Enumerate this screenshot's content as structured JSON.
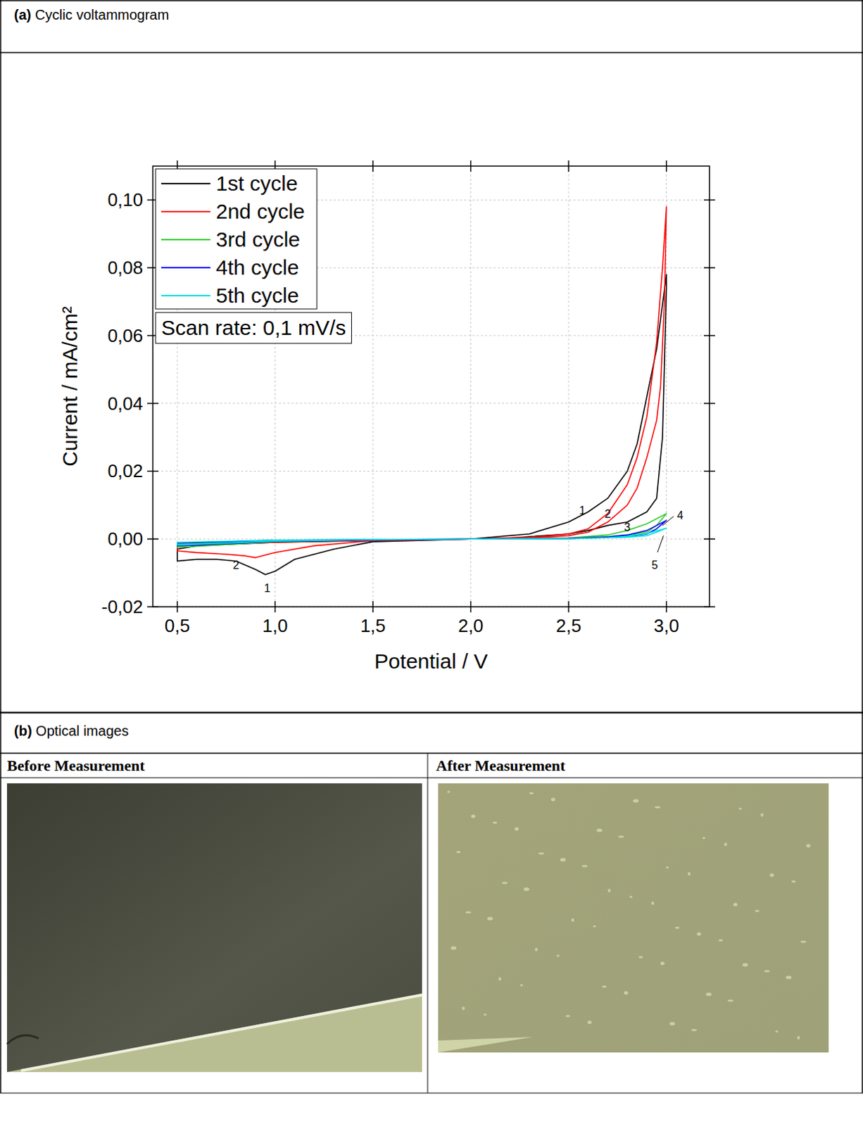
{
  "chart_data": {
    "type": "line",
    "x_label": "Potential / V",
    "y_label": "Current / mA/cm²",
    "xlim": [
      0.375,
      3.22
    ],
    "ylim": [
      -0.02,
      0.11
    ],
    "xticks": [
      {
        "value": 0.5,
        "label": "0,5"
      },
      {
        "value": 1.0,
        "label": "1,0"
      },
      {
        "value": 1.5,
        "label": "1,5"
      },
      {
        "value": 2.0,
        "label": "2,0"
      },
      {
        "value": 2.5,
        "label": "2,5"
      },
      {
        "value": 3.0,
        "label": "3,0"
      }
    ],
    "yticks": [
      {
        "value": -0.02,
        "label": "-0,02"
      },
      {
        "value": 0,
        "label": "0,00"
      },
      {
        "value": 0.02,
        "label": "0,02"
      },
      {
        "value": 0.04,
        "label": "0,04"
      },
      {
        "value": 0.06,
        "label": "0,06"
      },
      {
        "value": 0.08,
        "label": "0,08"
      },
      {
        "value": 0.1,
        "label": "0,10"
      }
    ],
    "grid": true,
    "legend": "upper left",
    "series": [
      {
        "name": "1st cycle",
        "color": "#000000",
        "x": [
          2.0,
          1.5,
          1.3,
          1.1,
          1.0,
          0.95,
          0.9,
          0.8,
          0.7,
          0.6,
          0.5,
          0.5,
          0.6,
          0.8,
          1.0,
          1.5,
          2.0,
          2.3,
          2.5,
          2.6,
          2.7,
          2.8,
          2.85,
          2.9,
          2.95,
          3.0,
          3.0,
          2.98,
          2.95,
          2.9,
          2.8,
          2.7,
          2.6,
          2.5,
          2.2,
          2.0
        ],
        "values": [
          0,
          -0.0008,
          -0.003,
          -0.006,
          -0.0095,
          -0.0105,
          -0.009,
          -0.0065,
          -0.006,
          -0.006,
          -0.0065,
          -0.003,
          -0.002,
          -0.0015,
          -0.001,
          -0.0005,
          0,
          0.0015,
          0.005,
          0.008,
          0.012,
          0.02,
          0.028,
          0.042,
          0.056,
          0.078,
          0.074,
          0.03,
          0.012,
          0.008,
          0.005,
          0.004,
          0.0025,
          0.0015,
          0.0003,
          0
        ]
      },
      {
        "name": "2nd cycle",
        "color": "#ff0000",
        "x": [
          2.0,
          1.5,
          1.2,
          1.0,
          0.9,
          0.85,
          0.75,
          0.6,
          0.5,
          0.5,
          0.6,
          1.0,
          1.5,
          2.0,
          2.3,
          2.5,
          2.6,
          2.7,
          2.8,
          2.85,
          2.9,
          2.95,
          2.98,
          3.0,
          2.99,
          2.97,
          2.95,
          2.9,
          2.85,
          2.8,
          2.7,
          2.6,
          2.5,
          2.3,
          2.0
        ],
        "values": [
          0,
          -0.0005,
          -0.002,
          -0.004,
          -0.0055,
          -0.005,
          -0.0045,
          -0.004,
          -0.0035,
          -0.002,
          -0.0018,
          -0.001,
          -0.0004,
          0,
          0.0005,
          0.0015,
          0.003,
          0.0075,
          0.016,
          0.024,
          0.036,
          0.058,
          0.08,
          0.098,
          0.07,
          0.045,
          0.035,
          0.024,
          0.015,
          0.01,
          0.005,
          0.002,
          0.001,
          0.0003,
          0
        ]
      },
      {
        "name": "3rd cycle",
        "color": "#33cc33",
        "x": [
          2.0,
          1.5,
          1.0,
          0.5,
          0.5,
          1.0,
          2.0,
          2.5,
          2.7,
          2.8,
          2.9,
          3.0,
          2.95,
          2.9,
          2.8,
          2.5,
          2.0
        ],
        "values": [
          0,
          -0.0003,
          -0.0008,
          -0.0025,
          -0.0015,
          -0.0005,
          0,
          0.0003,
          0.0012,
          0.0025,
          0.0045,
          0.0075,
          0.004,
          0.002,
          0.001,
          0.0002,
          0
        ]
      },
      {
        "name": "4th cycle",
        "color": "#0000ff",
        "x": [
          2.0,
          1.5,
          1.0,
          0.5,
          0.5,
          1.0,
          2.0,
          2.5,
          2.7,
          2.8,
          2.9,
          3.0,
          2.95,
          2.9,
          2.8,
          2.5,
          2.0
        ],
        "values": [
          0,
          -0.0003,
          -0.0007,
          -0.002,
          -0.0012,
          -0.0004,
          0,
          0.0002,
          0.0006,
          0.0012,
          0.0025,
          0.0055,
          0.003,
          0.0015,
          0.0007,
          0.0001,
          0
        ]
      },
      {
        "name": "5th cycle",
        "color": "#00e0e0",
        "x": [
          2.0,
          1.5,
          1.0,
          0.5,
          0.5,
          1.0,
          2.0,
          2.5,
          2.7,
          2.8,
          2.9,
          3.0,
          2.95,
          2.9,
          2.8,
          2.5,
          2.0
        ],
        "values": [
          0,
          -0.0002,
          -0.0006,
          -0.0018,
          -0.001,
          -0.0003,
          0,
          0.0001,
          0.0004,
          0.0008,
          0.0016,
          0.0032,
          0.002,
          0.001,
          0.0005,
          0.0001,
          0
        ]
      }
    ],
    "annotations": [
      {
        "text": "Scan rate: 0,1 mV/s"
      },
      {
        "text": "1",
        "x": 2.57,
        "y": 0.0085
      },
      {
        "text": "2",
        "x": 2.7,
        "y": 0.0075
      },
      {
        "text": "3",
        "x": 2.8,
        "y": 0.0035
      },
      {
        "text": "4",
        "x": 3.07,
        "y": 0.007,
        "target": [
          2.98,
          0.004
        ]
      },
      {
        "text": "5",
        "x": 2.94,
        "y": -0.0075,
        "target": [
          2.985,
          0.001
        ]
      },
      {
        "text": "2",
        "x": 0.8,
        "y": -0.0075
      },
      {
        "text": "1",
        "x": 0.96,
        "y": -0.0145
      }
    ]
  },
  "panels": {
    "a_title": "(a) Cyclic voltammogram",
    "b_title": "(b) Optical images",
    "images": [
      {
        "caption": "Before Measurement"
      },
      {
        "caption": "After Measurement"
      }
    ]
  }
}
